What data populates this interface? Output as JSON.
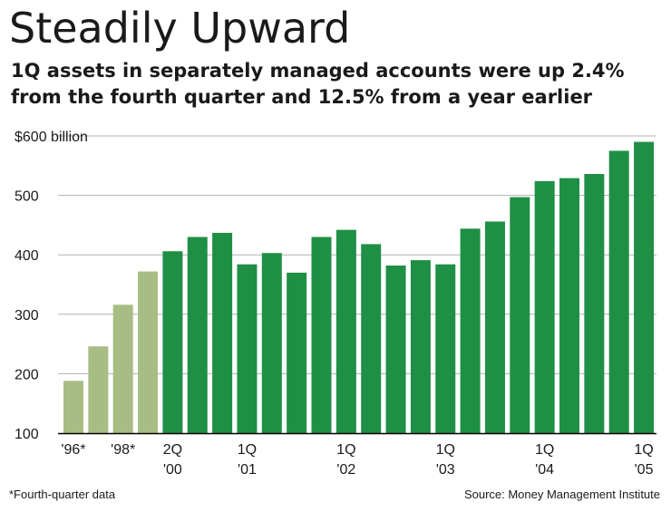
{
  "title": "Steadily Upward",
  "subtitle": "1Q assets in separately managed accounts were up 2.4% from the fourth quarter and 12.5% from a year earlier",
  "footnote": "*Fourth-quarter data",
  "source": "Source: Money Management Institute",
  "colors": {
    "annual": "#a7bd83",
    "quarterly": "#1f8f45",
    "grid": "#b0b0b0",
    "axis": "#000000"
  },
  "chart_data": {
    "type": "bar",
    "ylim": [
      100,
      600
    ],
    "yticks": [
      100,
      200,
      300,
      400,
      500,
      600
    ],
    "ytick_labels": [
      "100",
      "200",
      "300",
      "400",
      "500",
      "$600 billion"
    ],
    "grid": true,
    "values": [
      188,
      246,
      316,
      372,
      406,
      430,
      437,
      384,
      403,
      370,
      430,
      442,
      418,
      382,
      391,
      384,
      444,
      456,
      497,
      524,
      529,
      536,
      575,
      590
    ],
    "groups": [
      "annual",
      "annual",
      "annual",
      "annual",
      "quarterly",
      "quarterly",
      "quarterly",
      "quarterly",
      "quarterly",
      "quarterly",
      "quarterly",
      "quarterly",
      "quarterly",
      "quarterly",
      "quarterly",
      "quarterly",
      "quarterly",
      "quarterly",
      "quarterly",
      "quarterly",
      "quarterly",
      "quarterly",
      "quarterly",
      "quarterly"
    ],
    "xtick_labels": [
      {
        "index": 0,
        "lines": [
          "'96*"
        ]
      },
      {
        "index": 2,
        "lines": [
          "'98*"
        ]
      },
      {
        "index": 4,
        "lines": [
          "2Q",
          "'00"
        ]
      },
      {
        "index": 7,
        "lines": [
          "1Q",
          "'01"
        ]
      },
      {
        "index": 11,
        "lines": [
          "1Q",
          "'02"
        ]
      },
      {
        "index": 15,
        "lines": [
          "1Q",
          "'03"
        ]
      },
      {
        "index": 19,
        "lines": [
          "1Q",
          "'04"
        ]
      },
      {
        "index": 23,
        "lines": [
          "1Q",
          "'05"
        ]
      }
    ]
  }
}
